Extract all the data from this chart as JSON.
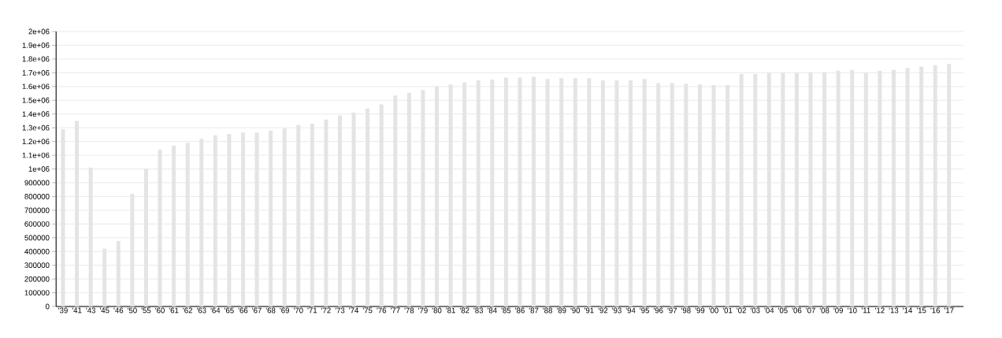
{
  "chart_data": {
    "type": "bar",
    "categories": [
      "'39",
      "'41",
      "'43",
      "'45",
      "'46",
      "'50",
      "'55",
      "'60",
      "'61",
      "'62",
      "'63",
      "'64",
      "'65",
      "'66",
      "'67",
      "'68",
      "'69",
      "'70",
      "'71",
      "'72",
      "'73",
      "'74",
      "'75",
      "'76",
      "'77",
      "'78",
      "'79",
      "'80",
      "'81",
      "'82",
      "'83",
      "'84",
      "'85",
      "'86",
      "'87",
      "'88",
      "'89",
      "'90",
      "'91",
      "'92",
      "'93",
      "'94",
      "'95",
      "'96",
      "'97",
      "'98",
      "'99",
      "'00",
      "'01",
      "'02",
      "'03",
      "'04",
      "'05",
      "'06",
      "'07",
      "'08",
      "'09",
      "'10",
      "'11",
      "'12",
      "'13",
      "'14",
      "'15",
      "'16",
      "'17"
    ],
    "values": [
      1290000,
      1350000,
      1010000,
      420000,
      475000,
      820000,
      1000000,
      1140000,
      1170000,
      1190000,
      1220000,
      1245000,
      1255000,
      1265000,
      1265000,
      1280000,
      1295000,
      1320000,
      1330000,
      1360000,
      1390000,
      1410000,
      1440000,
      1470000,
      1535000,
      1555000,
      1575000,
      1600000,
      1615000,
      1630000,
      1645000,
      1650000,
      1665000,
      1665000,
      1670000,
      1655000,
      1660000,
      1660000,
      1660000,
      1645000,
      1645000,
      1645000,
      1655000,
      1625000,
      1625000,
      1620000,
      1615000,
      1610000,
      1610000,
      1690000,
      1690000,
      1700000,
      1700000,
      1700000,
      1705000,
      1705000,
      1715000,
      1720000,
      1700000,
      1715000,
      1720000,
      1735000,
      1745000,
      1755000,
      1765000
    ],
    "color": "#e4e4e4",
    "ylim": [
      0,
      2000000
    ],
    "yticks": [
      0,
      100000,
      200000,
      300000,
      400000,
      500000,
      600000,
      700000,
      800000,
      900000,
      {
        "value": 1000000,
        "label": "1e+06"
      },
      {
        "value": 1100000,
        "label": "1.1e+06"
      },
      {
        "value": 1200000,
        "label": "1.2e+06"
      },
      {
        "value": 1300000,
        "label": "1.3e+06"
      },
      {
        "value": 1400000,
        "label": "1.4e+06"
      },
      {
        "value": 1500000,
        "label": "1.5e+06"
      },
      {
        "value": 1600000,
        "label": "1.6e+06"
      },
      {
        "value": 1700000,
        "label": "1.7e+06"
      },
      {
        "value": 1800000,
        "label": "1.8e+06"
      },
      {
        "value": 1900000,
        "label": "1.9e+06"
      },
      {
        "value": 2000000,
        "label": "2e+06"
      }
    ],
    "grid": "y"
  }
}
